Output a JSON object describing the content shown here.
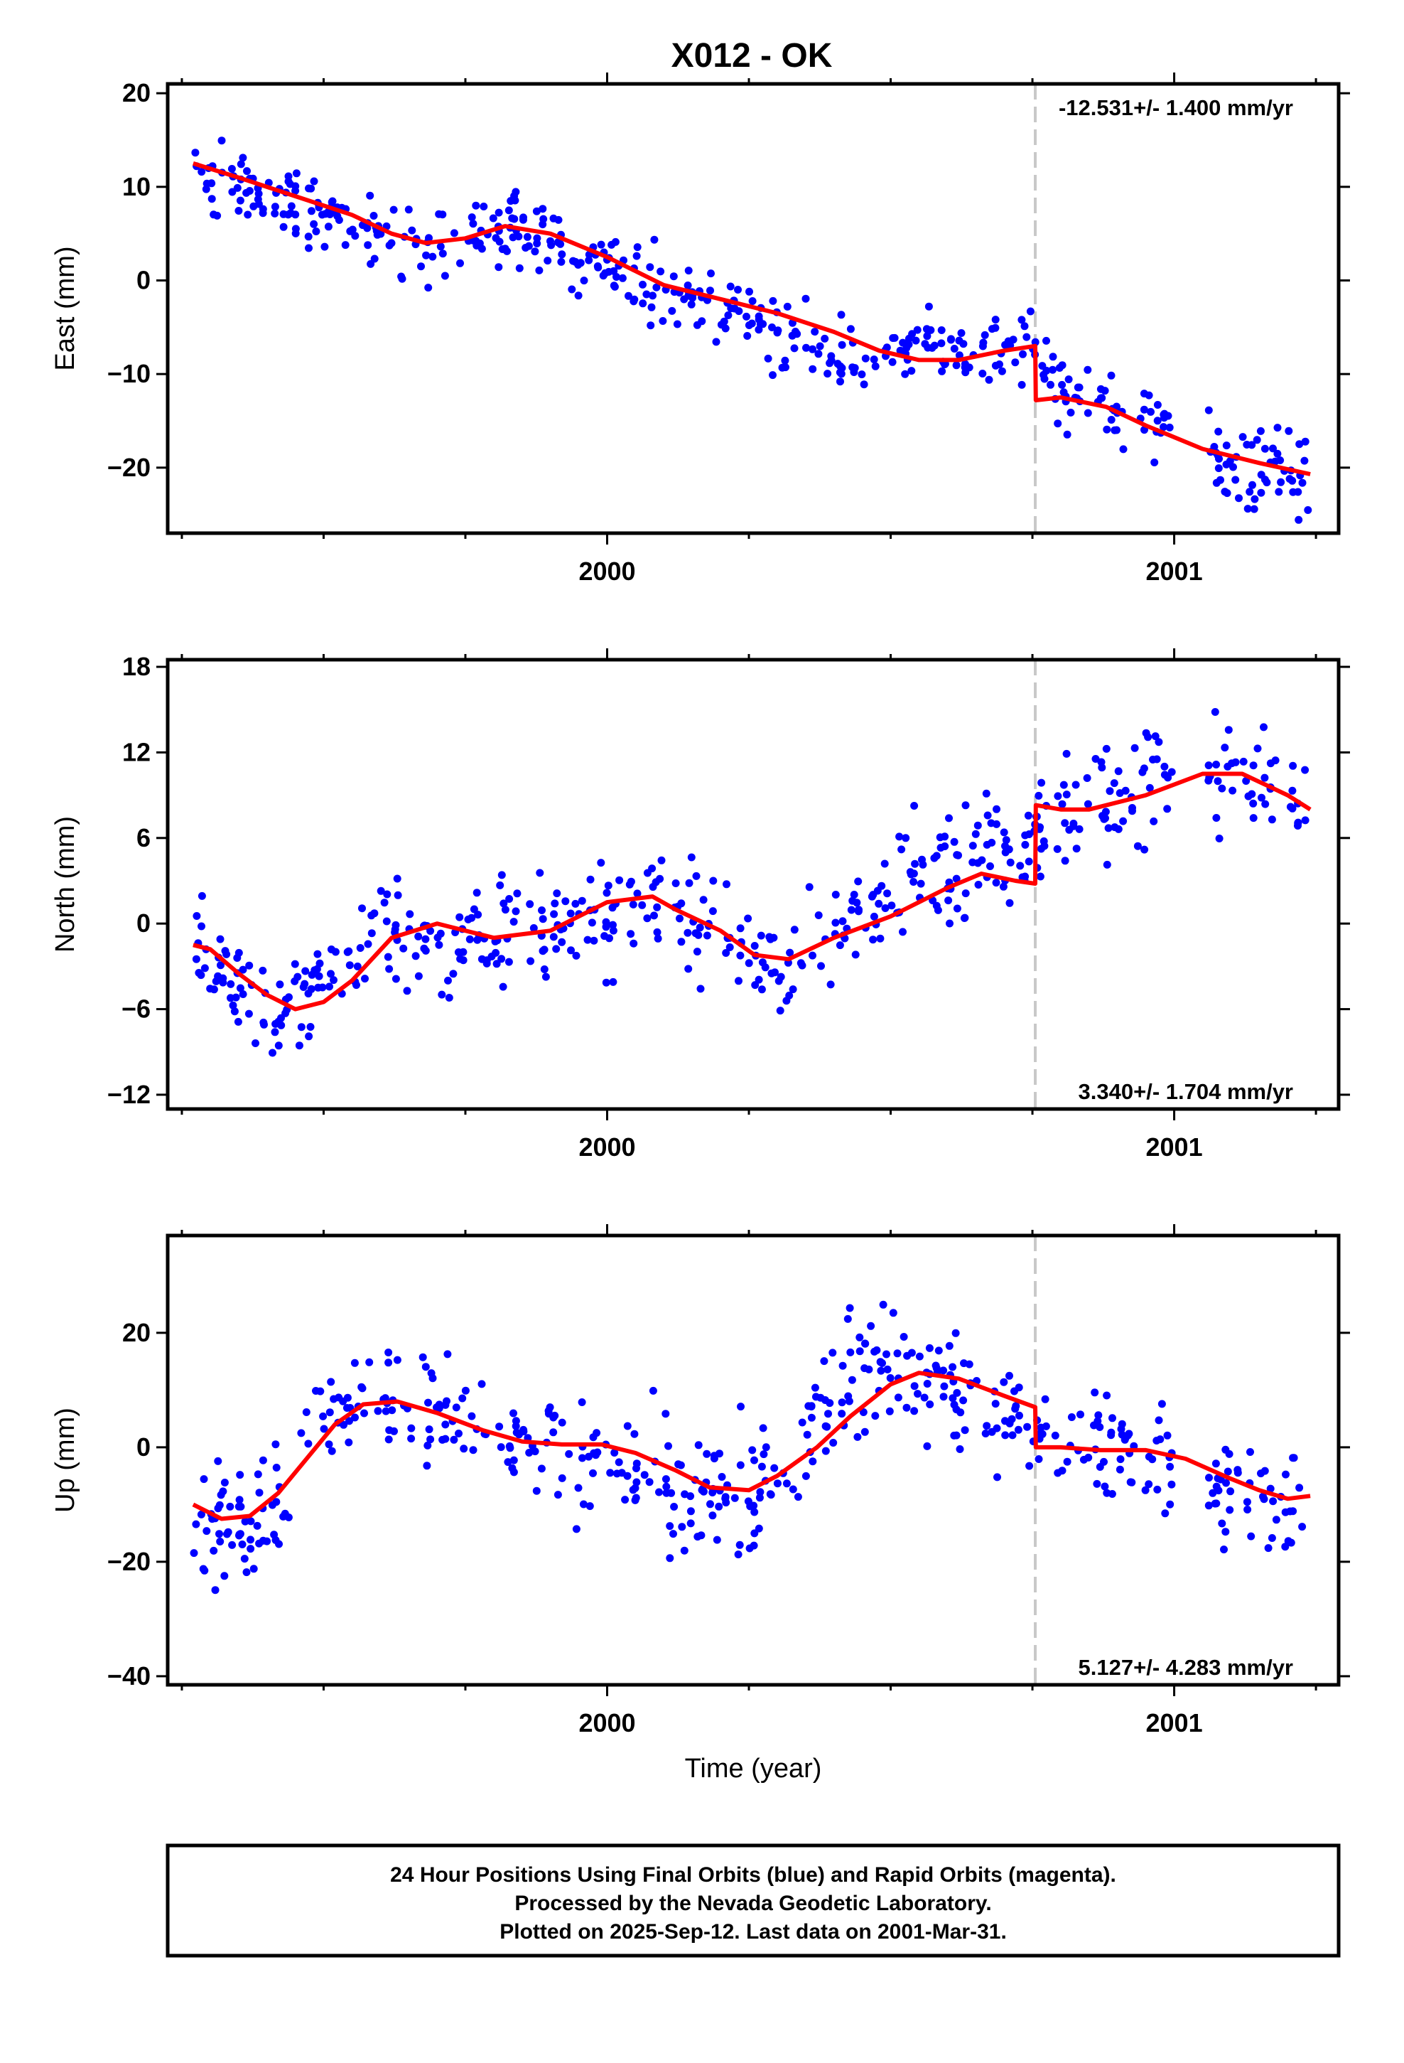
{
  "title": "X012 - OK",
  "colors": {
    "points": "#0000ff",
    "model": "#ff0000",
    "offset_line": "#c8c8c8",
    "frame": "#000000"
  },
  "chart_data": [
    {
      "type": "scatter",
      "ylabel": "East (mm)",
      "xlabel": "",
      "xlim": [
        1999.225,
        2001.29
      ],
      "ylim": [
        -27,
        21
      ],
      "yticks": [
        -20,
        -10,
        0,
        10,
        20
      ],
      "xtick_labels": [
        "2000",
        "2001"
      ],
      "offset_epoch": 2000.755,
      "rate_label": "-12.531+/- 1.400 mm/yr",
      "rate_position": "top-right",
      "series": [
        {
          "role": "observations",
          "x_values": [
            1999.27,
            1999.32,
            1999.37,
            1999.42,
            1999.47,
            1999.52,
            1999.57,
            1999.62,
            1999.67,
            1999.72,
            1999.77,
            1999.82,
            1999.87,
            1999.92,
            1999.97,
            2000.02,
            2000.07,
            2000.12,
            2000.17,
            2000.22,
            2000.27,
            2000.32,
            2000.37,
            2000.42,
            2000.47,
            2000.52,
            2000.57,
            2000.62,
            2000.67,
            2000.72,
            2000.75,
            2000.8,
            2000.85,
            2000.9,
            2000.95,
            2001.0,
            2001.05,
            2001.1,
            2001.15,
            2001.2,
            2001.24
          ],
          "y_values": [
            12,
            11,
            10,
            9,
            8,
            6.5,
            5,
            4,
            3.5,
            4,
            5,
            5.5,
            5,
            4,
            2.5,
            1,
            -0.5,
            -1.5,
            -2.5,
            -3.5,
            -4.5,
            -6,
            -7.5,
            -8.5,
            -9,
            -8.5,
            -8,
            -8,
            -8,
            -7.5,
            -7,
            -12.5,
            -13,
            -13.5,
            -14.5,
            -16,
            -18,
            -19.5,
            -20.5,
            -21,
            -21.5
          ]
        },
        {
          "role": "model",
          "x_values": [
            1999.27,
            1999.35,
            1999.45,
            1999.55,
            1999.62,
            1999.68,
            1999.75,
            1999.82,
            1999.9,
            2000.0,
            2000.1,
            2000.2,
            2000.3,
            2000.4,
            2000.48,
            2000.55,
            2000.62,
            2000.7,
            2000.755,
            2000.756,
            2000.8,
            2000.88,
            2000.95,
            2001.05,
            2001.15,
            2001.24
          ],
          "y_values": [
            12.5,
            11,
            9,
            7,
            5,
            4,
            4.5,
            5.8,
            5,
            2.5,
            -0.5,
            -2,
            -3.5,
            -5.5,
            -7.5,
            -8.5,
            -8.5,
            -7.5,
            -7,
            -12.8,
            -12.5,
            -13.5,
            -15.5,
            -18,
            -19.5,
            -20.7
          ]
        }
      ]
    },
    {
      "type": "scatter",
      "ylabel": "North (mm)",
      "xlabel": "",
      "xlim": [
        1999.225,
        2001.29
      ],
      "ylim": [
        -13,
        18.5
      ],
      "yticks": [
        -12,
        -6,
        0,
        6,
        12,
        18
      ],
      "xtick_labels": [
        "2000",
        "2001"
      ],
      "offset_epoch": 2000.755,
      "rate_label": "3.340+/- 1.704 mm/yr",
      "rate_position": "bottom-right",
      "series": [
        {
          "role": "observations",
          "x_values": [
            1999.27,
            1999.32,
            1999.37,
            1999.42,
            1999.47,
            1999.52,
            1999.57,
            1999.62,
            1999.67,
            1999.72,
            1999.77,
            1999.82,
            1999.87,
            1999.92,
            1999.97,
            2000.02,
            2000.07,
            2000.12,
            2000.17,
            2000.22,
            2000.27,
            2000.32,
            2000.37,
            2000.42,
            2000.47,
            2000.52,
            2000.57,
            2000.62,
            2000.67,
            2000.72,
            2000.75,
            2000.8,
            2000.85,
            2000.9,
            2000.95,
            2001.0,
            2001.05,
            2001.1,
            2001.15,
            2001.2,
            2001.24
          ],
          "y_values": [
            -1,
            -3,
            -5,
            -5.5,
            -5,
            -4,
            -2,
            0,
            -0.5,
            -1.5,
            -1,
            0,
            0,
            -0.5,
            0,
            1,
            1.5,
            1,
            0,
            -1.5,
            -2.5,
            -2.5,
            -1,
            0.5,
            2,
            3.5,
            4,
            4.5,
            4.5,
            4.5,
            6,
            8,
            8.5,
            9,
            9.5,
            10,
            10.5,
            10.5,
            10,
            9,
            8.5
          ]
        },
        {
          "role": "model",
          "x_values": [
            1999.27,
            1999.3,
            1999.35,
            1999.4,
            1999.45,
            1999.5,
            1999.55,
            1999.62,
            1999.7,
            1999.8,
            1999.9,
            1999.95,
            2000.0,
            2000.08,
            2000.12,
            2000.2,
            2000.26,
            2000.32,
            2000.4,
            2000.5,
            2000.6,
            2000.66,
            2000.72,
            2000.755,
            2000.756,
            2000.8,
            2000.85,
            2000.95,
            2001.05,
            2001.12,
            2001.2,
            2001.24
          ],
          "y_values": [
            -1.5,
            -1.8,
            -3.5,
            -5,
            -6,
            -5.5,
            -4,
            -1,
            0,
            -1,
            -0.5,
            0.5,
            1.5,
            1.9,
            1,
            -0.5,
            -2.2,
            -2.5,
            -1,
            0.5,
            2.5,
            3.5,
            3,
            2.8,
            8.3,
            8,
            8,
            9,
            10.5,
            10.5,
            9,
            8
          ]
        }
      ]
    },
    {
      "type": "scatter",
      "ylabel": "Up (mm)",
      "xlabel": "Time (year)",
      "xlim": [
        1999.225,
        2001.29
      ],
      "ylim": [
        -41.5,
        37
      ],
      "yticks": [
        -40,
        -20,
        0,
        20
      ],
      "xtick_labels": [
        "2000",
        "2001"
      ],
      "offset_epoch": 2000.755,
      "rate_label": "5.127+/- 4.283 mm/yr",
      "rate_position": "bottom-right",
      "series": [
        {
          "role": "observations",
          "x_values": [
            1999.27,
            1999.32,
            1999.37,
            1999.42,
            1999.47,
            1999.52,
            1999.57,
            1999.62,
            1999.67,
            1999.72,
            1999.77,
            1999.82,
            1999.87,
            1999.92,
            1999.97,
            2000.02,
            2000.07,
            2000.12,
            2000.17,
            2000.22,
            2000.27,
            2000.32,
            2000.37,
            2000.42,
            2000.47,
            2000.52,
            2000.57,
            2000.62,
            2000.67,
            2000.72,
            2000.75,
            2000.8,
            2000.85,
            2000.9,
            2000.95,
            2001.0,
            2001.05,
            2001.1,
            2001.15,
            2001.2,
            2001.24
          ],
          "y_values": [
            -12,
            -14,
            -14,
            -8,
            0,
            5,
            7,
            8,
            7,
            5,
            2,
            1,
            0,
            0,
            -1,
            -3,
            -5,
            -7,
            -8,
            -9,
            -7,
            -3,
            5,
            12,
            14,
            13,
            11,
            9,
            7,
            6,
            4,
            0,
            -1,
            0,
            -1,
            -2,
            -5,
            -8,
            -9,
            -10,
            -9
          ]
        },
        {
          "role": "model",
          "x_values": [
            1999.27,
            1999.32,
            1999.37,
            1999.42,
            1999.47,
            1999.52,
            1999.57,
            1999.63,
            1999.7,
            1999.78,
            1999.85,
            1999.92,
            1999.99,
            2000.05,
            2000.12,
            2000.18,
            2000.25,
            2000.3,
            2000.37,
            2000.43,
            2000.5,
            2000.55,
            2000.62,
            2000.7,
            2000.755,
            2000.756,
            2000.8,
            2000.87,
            2000.95,
            2001.02,
            2001.1,
            2001.15,
            2001.2,
            2001.24
          ],
          "y_values": [
            -10,
            -12.5,
            -12,
            -8,
            -2,
            4,
            7.5,
            8,
            6,
            3,
            1,
            0.5,
            0.5,
            -1,
            -4,
            -7,
            -7.5,
            -5,
            0,
            5.5,
            11,
            13,
            12,
            9,
            7,
            0,
            0,
            -0.5,
            -0.5,
            -2,
            -5.5,
            -7.5,
            -9,
            -8.5
          ]
        }
      ]
    }
  ],
  "footer": {
    "line1": "24 Hour Positions Using Final Orbits (blue) and Rapid Orbits (magenta).",
    "line2": "Processed by the Nevada Geodetic Laboratory.",
    "line3": "Plotted on 2025-Sep-12. Last data on 2001-Mar-31."
  }
}
